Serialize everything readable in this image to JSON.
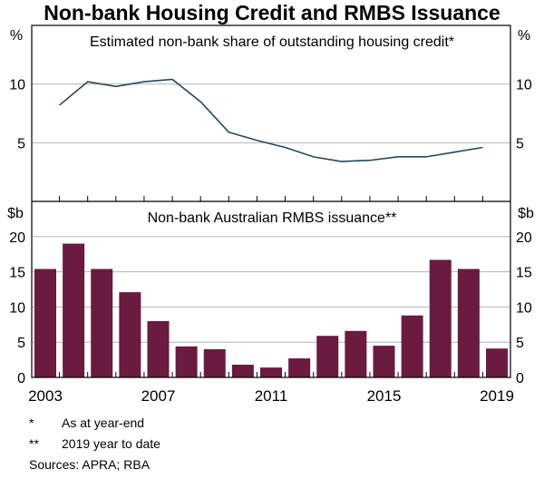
{
  "title": "Non-bank Housing Credit and RMBS Issuance",
  "chart_data": [
    {
      "type": "line",
      "title": "Estimated non-bank share of outstanding housing credit*",
      "ylabel": "%",
      "ylim": [
        0,
        15
      ],
      "yticks": [
        5,
        10
      ],
      "x": [
        2003,
        2004,
        2005,
        2006,
        2007,
        2008,
        2009,
        2010,
        2011,
        2012,
        2013,
        2014,
        2015,
        2016,
        2017,
        2018
      ],
      "values": [
        8.2,
        10.2,
        9.8,
        10.2,
        10.4,
        8.5,
        5.9,
        5.2,
        4.6,
        3.8,
        3.4,
        3.5,
        3.8,
        3.8,
        4.2,
        4.6
      ],
      "color": "#24475c",
      "grid": true
    },
    {
      "type": "bar",
      "title": "Non-bank Australian RMBS issuance**",
      "ylabel": "$b",
      "ylim": [
        0,
        25
      ],
      "yticks": [
        0,
        5,
        10,
        15,
        20
      ],
      "categories": [
        2003,
        2004,
        2005,
        2006,
        2007,
        2008,
        2009,
        2010,
        2011,
        2012,
        2013,
        2014,
        2015,
        2016,
        2017,
        2018,
        2019
      ],
      "xtick_labels": [
        "2003",
        "2007",
        "2011",
        "2015",
        "2019"
      ],
      "values": [
        15.4,
        19.0,
        15.4,
        12.1,
        8.0,
        4.4,
        4.0,
        1.8,
        1.4,
        2.7,
        5.9,
        6.6,
        4.5,
        8.8,
        16.7,
        15.4,
        4.1
      ],
      "color": "#6b1a40",
      "grid": true
    }
  ],
  "footnotes": [
    {
      "mark": "*",
      "text": "As at year-end"
    },
    {
      "mark": "**",
      "text": "2019 year to date"
    }
  ],
  "sources": "Sources: APRA; RBA"
}
